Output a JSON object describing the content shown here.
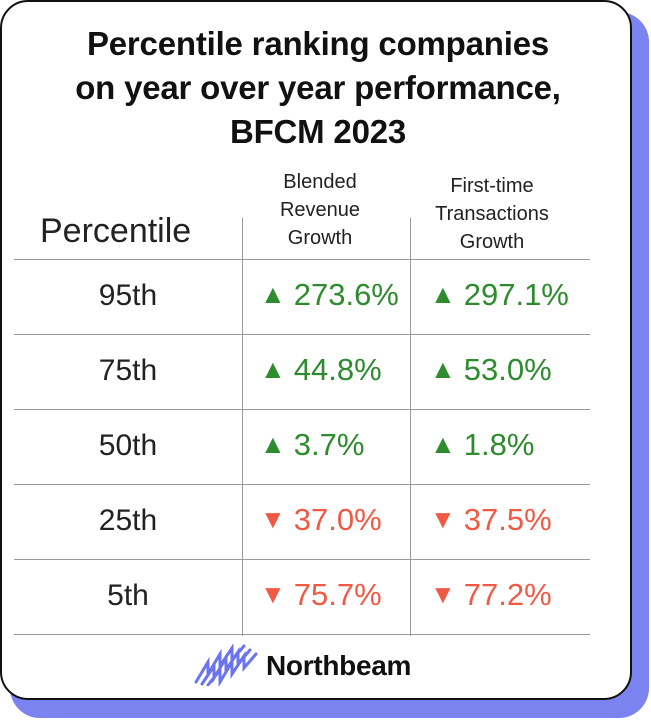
{
  "title": {
    "line1": "Percentile ranking companies",
    "line2": "on year over year performance,",
    "line3": "BFCM 2023"
  },
  "columns": {
    "percentile": "Percentile",
    "blended": {
      "line1": "Blended",
      "line2": "Revenue",
      "line3": "Growth"
    },
    "first_time": {
      "line1": "First-time",
      "line2": "Transactions",
      "line3": "Growth"
    }
  },
  "rows": [
    {
      "percentile": "95th",
      "blended": "273.6%",
      "blended_dir": "up",
      "first_time": "297.1%",
      "first_time_dir": "up"
    },
    {
      "percentile": "75th",
      "blended": "44.8%",
      "blended_dir": "up",
      "first_time": "53.0%",
      "first_time_dir": "up"
    },
    {
      "percentile": "50th",
      "blended": "3.7%",
      "blended_dir": "up",
      "first_time": "1.8%",
      "first_time_dir": "up"
    },
    {
      "percentile": "25th",
      "blended": "37.0%",
      "blended_dir": "down",
      "first_time": "37.5%",
      "first_time_dir": "down"
    },
    {
      "percentile": "5th",
      "blended": "75.7%",
      "blended_dir": "down",
      "first_time": "77.2%",
      "first_time_dir": "down"
    }
  ],
  "colors": {
    "up": "#2e8b2e",
    "down": "#f05a45",
    "brand": "#6b73ef"
  },
  "icons": {
    "up": "triangle-up-icon",
    "down": "triangle-down-icon",
    "logo": "northbeam-logo-icon"
  },
  "brand": "Northbeam",
  "chart_data": {
    "type": "table",
    "title": "Percentile ranking companies on year over year performance, BFCM 2023",
    "columns": [
      "Percentile",
      "Blended Revenue Growth",
      "First-time Transactions Growth"
    ],
    "rows": [
      [
        "95th",
        "▲ 273.6%",
        "▲ 297.1%"
      ],
      [
        "75th",
        "▲ 44.8%",
        "▲ 53.0%"
      ],
      [
        "50th",
        "▲ 3.7%",
        "▲ 1.8%"
      ],
      [
        "25th",
        "▼ 37.0%",
        "▼ 37.5%"
      ],
      [
        "5th",
        "▼ 75.7%",
        "▼ 77.2%"
      ]
    ]
  }
}
